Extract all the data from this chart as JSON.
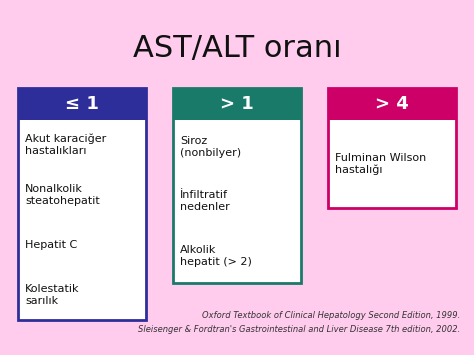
{
  "title": "AST/ALT oranı",
  "background_color": "#FFCCEE",
  "box1": {
    "header": "≤ 1",
    "header_color": "#2E2E9A",
    "border_color": "#2E2E9A",
    "items": [
      "Akut karaciğer\nhastalıkları",
      "Nonalkolik\nsteatohepatit",
      "Hepatit C",
      "Kolestatik\nsarılık"
    ]
  },
  "box2": {
    "header": "> 1",
    "header_color": "#1A7A6A",
    "border_color": "#1A7A6A",
    "items": [
      "Siroz\n(nonbilyer)",
      "İnfiltratif\nnedenler",
      "Alkolik\nhepatit (> 2)"
    ]
  },
  "box3": {
    "header": "> 4",
    "header_color": "#CC0066",
    "border_color": "#CC0066",
    "items": [
      "Fulminan Wilson\nhastalığı"
    ]
  },
  "footnote1": "Oxford Textbook of Clinical Hepatology Second Edition, 1999.",
  "footnote2": "Sleisenger & Fordtran's Gastrointestinal and Liver Disease 7th edition, 2002.",
  "fig_width": 4.74,
  "fig_height": 3.55,
  "dpi": 100
}
